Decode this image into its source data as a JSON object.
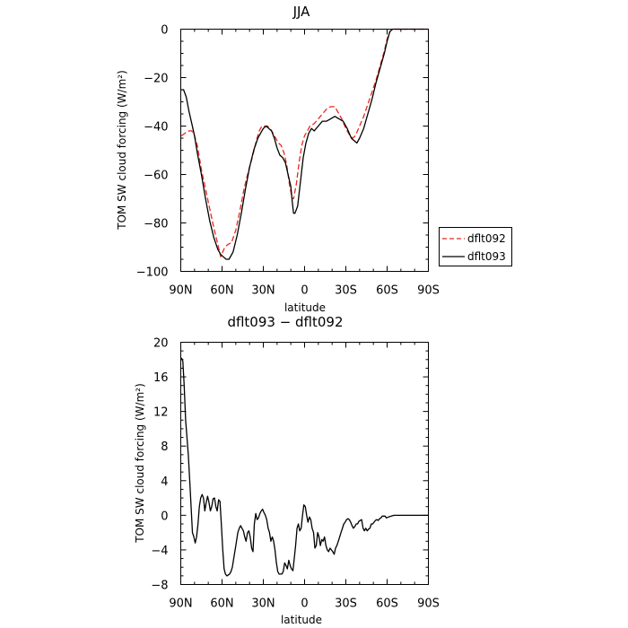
{
  "chart_data": [
    {
      "type": "line",
      "title": "JJA",
      "xlabel": "latitude",
      "ylabel": "TOM SW cloud forcing (W/m²)",
      "xlim": [
        90,
        -90
      ],
      "ylim": [
        -100,
        0
      ],
      "x_ticks": [
        {
          "value": 90,
          "label": "90N"
        },
        {
          "value": 60,
          "label": "60N"
        },
        {
          "value": 30,
          "label": "30N"
        },
        {
          "value": 0,
          "label": "0"
        },
        {
          "value": -30,
          "label": "30S"
        },
        {
          "value": -60,
          "label": "60S"
        },
        {
          "value": -90,
          "label": "90S"
        }
      ],
      "y_ticks": [
        {
          "value": 0,
          "label": "0"
        },
        {
          "value": -20,
          "label": "−20"
        },
        {
          "value": -40,
          "label": "−40"
        },
        {
          "value": -60,
          "label": "−60"
        },
        {
          "value": -80,
          "label": "−80"
        },
        {
          "value": -100,
          "label": "−100"
        }
      ],
      "legend": {
        "placement": "right"
      },
      "series": [
        {
          "name": "dflt092",
          "color": "#e8281e",
          "dash": true,
          "x": [
            89.5,
            87,
            84,
            82,
            80,
            78,
            75,
            72,
            69,
            66,
            63,
            61,
            58,
            56,
            53,
            50,
            47,
            44,
            41,
            38,
            35,
            33,
            31,
            29,
            27,
            25,
            22,
            19,
            17,
            15,
            13,
            11,
            9,
            8,
            6,
            4,
            2,
            0,
            -2,
            -4,
            -7,
            -10,
            -13,
            -16,
            -19,
            -22,
            -24,
            -27,
            -30,
            -33,
            -35,
            -37,
            -40,
            -43,
            -46,
            -49,
            -52,
            -55,
            -58,
            -60,
            -62,
            -64,
            -66,
            -68,
            -70,
            -75,
            -80,
            -85,
            -90
          ],
          "y": [
            -44,
            -43,
            -42,
            -42,
            -44,
            -48,
            -58,
            -66,
            -74,
            -82,
            -89,
            -94,
            -90,
            -89,
            -88,
            -83,
            -75,
            -66,
            -59,
            -53,
            -46,
            -42,
            -40,
            -40,
            -40,
            -41,
            -44,
            -47,
            -48,
            -51,
            -56,
            -64,
            -70,
            -70,
            -64,
            -55,
            -48,
            -44,
            -42,
            -40,
            -39,
            -37,
            -35,
            -33,
            -32,
            -32,
            -34,
            -37,
            -41,
            -44,
            -45,
            -44,
            -40,
            -36,
            -31,
            -26,
            -21,
            -15,
            -9,
            -4,
            -1,
            0,
            0,
            0,
            0,
            0,
            0,
            0,
            0
          ]
        },
        {
          "name": "dflt093",
          "color": "#000000",
          "dash": false,
          "x": [
            89.5,
            88,
            86,
            84,
            82,
            80,
            78,
            75,
            72,
            69,
            66,
            63,
            61,
            59,
            57,
            55,
            52,
            49,
            46,
            43,
            40,
            37,
            34,
            32,
            30,
            28,
            26,
            24,
            22,
            20,
            18,
            16,
            14,
            12,
            10,
            9,
            8,
            7,
            5,
            3,
            1,
            -1,
            -3,
            -5,
            -7,
            -10,
            -13,
            -16,
            -19,
            -22,
            -25,
            -28,
            -31,
            -34,
            -36,
            -38,
            -40,
            -43,
            -46,
            -49,
            -52,
            -55,
            -58,
            -60,
            -62,
            -64,
            -66,
            -68,
            -70,
            -75,
            -80,
            -85,
            -90
          ],
          "y": [
            -25,
            -25,
            -28,
            -34,
            -39,
            -44,
            -51,
            -60,
            -70,
            -79,
            -86,
            -91,
            -93,
            -94,
            -95,
            -95,
            -92,
            -85,
            -76,
            -66,
            -57,
            -50,
            -45,
            -43,
            -41,
            -40,
            -41,
            -42,
            -45,
            -49,
            -52,
            -53,
            -55,
            -60,
            -65,
            -71,
            -76,
            -76,
            -73,
            -63,
            -53,
            -47,
            -43,
            -41,
            -42,
            -40,
            -38,
            -38,
            -37,
            -36,
            -37,
            -38,
            -41,
            -45,
            -46,
            -47,
            -45,
            -41,
            -35,
            -29,
            -22,
            -16,
            -10,
            -5,
            -1,
            0,
            0,
            0,
            0,
            0,
            0,
            0,
            0
          ]
        }
      ]
    },
    {
      "type": "line",
      "title": "dflt093 − dflt092",
      "xlabel": "latitude",
      "ylabel": "TOM SW cloud forcing (W/m²)",
      "xlim": [
        90,
        -90
      ],
      "ylim": [
        -8,
        20
      ],
      "x_ticks": [
        {
          "value": 90,
          "label": "90N"
        },
        {
          "value": 60,
          "label": "60N"
        },
        {
          "value": 30,
          "label": "30N"
        },
        {
          "value": 0,
          "label": "0"
        },
        {
          "value": -30,
          "label": "30S"
        },
        {
          "value": -60,
          "label": "60S"
        },
        {
          "value": -90,
          "label": "90S"
        }
      ],
      "y_ticks": [
        {
          "value": 20,
          "label": "20"
        },
        {
          "value": 16,
          "label": "16"
        },
        {
          "value": 12,
          "label": "12"
        },
        {
          "value": 8,
          "label": "8"
        },
        {
          "value": 4,
          "label": "4"
        },
        {
          "value": 0,
          "label": "0"
        },
        {
          "value": -4,
          "label": "−4"
        },
        {
          "value": -8,
          "label": "−8"
        }
      ],
      "series": [
        {
          "color": "#000000",
          "dash": false,
          "x": [
            89.5,
            88.5,
            87.5,
            86.5,
            85.5,
            84.5,
            83.5,
            82.5,
            81.5,
            80.5,
            79.5,
            78.5,
            77.5,
            76.5,
            75.5,
            74.5,
            73.5,
            72.5,
            71.5,
            70.5,
            69.5,
            68.5,
            67.5,
            66.5,
            65.5,
            64.5,
            63.5,
            62.5,
            61.5,
            60.5,
            59.5,
            58.5,
            57.5,
            56.5,
            55.5,
            54.5,
            53.5,
            52.5,
            51.5,
            50.5,
            49.5,
            48.5,
            47.5,
            46.5,
            45.5,
            44.5,
            43.5,
            42.5,
            41.5,
            40.5,
            39.5,
            38.5,
            37.5,
            36.5,
            35.5,
            34.5,
            33.5,
            32.5,
            31.5,
            30.5,
            29.5,
            28.5,
            27.5,
            26.5,
            25.5,
            24.5,
            23.5,
            22.5,
            21.5,
            20.5,
            19.5,
            18.5,
            17.5,
            16.5,
            15.5,
            14.5,
            13.5,
            12.5,
            11.5,
            10.5,
            9.5,
            8.5,
            7.5,
            6.5,
            5.5,
            4.5,
            3.5,
            2.5,
            1.5,
            0.5,
            -0.5,
            -1.5,
            -2.5,
            -3.5,
            -4.5,
            -5.5,
            -6.5,
            -7.5,
            -8.5,
            -9.5,
            -10.5,
            -11.5,
            -12.5,
            -13.5,
            -14.5,
            -15.5,
            -16.5,
            -17.5,
            -18.5,
            -19.5,
            -20.5,
            -21.5,
            -22.5,
            -23.5,
            -24.5,
            -25.5,
            -26.5,
            -27.5,
            -28.5,
            -29.5,
            -30.5,
            -31.5,
            -32.5,
            -33.5,
            -34.5,
            -35.5,
            -36.5,
            -37.5,
            -38.5,
            -39.5,
            -40.5,
            -41.5,
            -42.5,
            -43.5,
            -44.5,
            -45.5,
            -46.5,
            -47.5,
            -48.5,
            -49.5,
            -50.5,
            -51.5,
            -52.5,
            -53.5,
            -54.5,
            -55.5,
            -56.5,
            -57.5,
            -58.5,
            -59.5,
            -61,
            -63,
            -65,
            -70,
            -75,
            -80,
            -85,
            -90
          ],
          "y": [
            18.2,
            17.8,
            15,
            11,
            9,
            7,
            4,
            1,
            -2,
            -2.5,
            -3.2,
            -2.5,
            -1,
            1,
            2,
            2.4,
            2,
            0.5,
            1.5,
            2.2,
            1.5,
            0.5,
            1,
            1.9,
            2,
            1,
            0.5,
            1.8,
            1.6,
            -1,
            -4,
            -6.2,
            -6.8,
            -7,
            -6.9,
            -6.8,
            -6.5,
            -6,
            -5,
            -4,
            -3,
            -2,
            -1.5,
            -1.2,
            -1.5,
            -1.8,
            -2.5,
            -3,
            -2,
            -1.8,
            -2.5,
            -3.8,
            -4.2,
            -1,
            0.2,
            -0.5,
            -0.3,
            0.2,
            0.5,
            0.7,
            0.3,
            0,
            -0.5,
            -1.5,
            -2,
            -3,
            -2.5,
            -3,
            -4,
            -5.5,
            -6.5,
            -6.8,
            -6.8,
            -6.8,
            -6.5,
            -5.5,
            -5.8,
            -6.2,
            -5.2,
            -5.8,
            -6.2,
            -6.4,
            -5,
            -3.5,
            -1.5,
            -1,
            -1.8,
            -1.5,
            0,
            1.2,
            1,
            0,
            -0.8,
            -0.2,
            -0.5,
            -1.5,
            -2,
            -3.8,
            -3.5,
            -2,
            -2.5,
            -3.5,
            -2.8,
            -3,
            -2.5,
            -3.5,
            -4,
            -4.2,
            -3.8,
            -4,
            -4.2,
            -4.5,
            -3.8,
            -3.5,
            -3,
            -2.5,
            -2,
            -1.5,
            -1,
            -0.8,
            -0.5,
            -0.4,
            -0.5,
            -0.8,
            -1.2,
            -1.5,
            -1.3,
            -1,
            -1,
            -0.7,
            -0.6,
            -0.5,
            -1.5,
            -1.8,
            -1.5,
            -1.8,
            -1.6,
            -1.5,
            -1,
            -1,
            -0.8,
            -0.6,
            -0.5,
            -0.6,
            -0.4,
            -0.3,
            -0.1,
            -0.1,
            -0.1,
            -0.3,
            -0.2,
            -0.1,
            0,
            0,
            0,
            0,
            0,
            0
          ]
        }
      ]
    }
  ]
}
